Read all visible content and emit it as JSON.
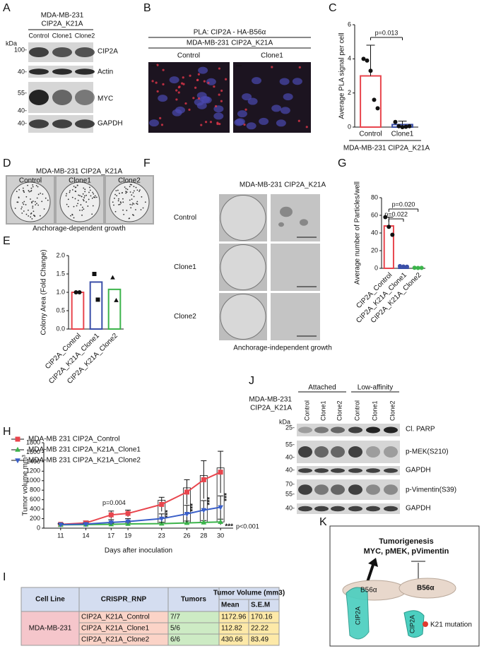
{
  "panel_labels": [
    "A",
    "B",
    "C",
    "D",
    "E",
    "F",
    "G",
    "H",
    "I",
    "J",
    "K"
  ],
  "panel_a": {
    "cell_line": "MDA-MB-231",
    "construct": "CIP2A_K21A",
    "lanes": [
      "Control",
      "Clone1",
      "Clone2"
    ],
    "kda": "kDa",
    "markers": [
      "100-",
      "40-",
      "55-",
      "40-",
      "40-"
    ],
    "proteins": [
      "CIP2A",
      "Actin",
      "MYC",
      "GAPDH"
    ]
  },
  "panel_b": {
    "title": "PLA: CIP2A - HA-B56α",
    "subtitle": "MDA-MB-231 CIP2A_K21A",
    "columns": [
      "Control",
      "Clone1"
    ]
  },
  "panel_d": {
    "title": "MDA-MB-231 CIP2A_K21A",
    "columns": [
      "Control",
      "Clone1",
      "Clone2"
    ],
    "caption": "Anchorage-dependent growth"
  },
  "panel_f": {
    "title": "MDA-MB-231 CIP2A_K21A",
    "rows": [
      "Control",
      "Clone1",
      "Clone2"
    ],
    "caption": "Anchorage-independent growth"
  },
  "panel_j": {
    "groups": [
      "Attached",
      "Low-affinity"
    ],
    "lanes": [
      "Control",
      "Clone1",
      "Clone2",
      "Control",
      "Clone1",
      "Clone2"
    ],
    "cell_line": "MDA-MB-231",
    "construct": "CIP2A_K21A",
    "kda": "kDa",
    "markers": [
      "25-",
      "55-",
      "40-",
      "40-",
      "70-",
      "55-",
      "40-"
    ],
    "proteins": [
      "Cl. PARP",
      "p-MEK(S210)",
      "GAPDH",
      "p-Vimentin(S39)",
      "GAPDH"
    ]
  },
  "panel_k": {
    "title": "Tumorigenesis",
    "subtitle": "MYC, pMEK, pVimentin",
    "b56": "B56α",
    "cip2a": "CIP2A",
    "mutation": "K21 mutation"
  },
  "table": {
    "header": [
      "Cell Line",
      "CRISPR_RNP",
      "Tumors",
      "Tumor Volume (mm3)"
    ],
    "subheader": [
      "Mean",
      "S.E.M"
    ],
    "cell_line": "MDA-MB-231",
    "rows": [
      [
        "CIP2A_K21A_Control",
        "7/7",
        1172.96,
        170.16
      ],
      [
        "CIP2A_K21A_Clone1",
        "5/6",
        112.82,
        22.22
      ],
      [
        "CIP2A_K21A_Clone2",
        "6/6",
        430.66,
        83.49
      ]
    ]
  },
  "chart_data": [
    {
      "type": "bar",
      "ylabel": "Average PLA signal per cell",
      "xlabel": "MDA-MB-231 CIP2A_K21A",
      "categories": [
        "Control",
        "Clone1"
      ],
      "values": [
        3.0,
        0.15
      ],
      "errors": [
        1.8,
        0.2
      ],
      "points": [
        [
          4.0,
          3.9,
          3.3,
          1.6,
          1.1
        ],
        [
          0.3,
          0.05,
          0.0,
          0.02,
          0.05
        ]
      ],
      "colors": [
        "#e8454d",
        "#3a4fa8"
      ],
      "ylim": [
        0,
        6
      ],
      "yticks": [
        0,
        2,
        4,
        6
      ],
      "annotations": [
        "p=0.013"
      ]
    },
    {
      "type": "bar",
      "ylabel": "Colony Area (Fold Change)",
      "categories": [
        "CIP2A_Control",
        "CIP2A_K21A_Clone1",
        "CIP2A_K21A_Clone2"
      ],
      "values": [
        1.0,
        1.28,
        1.08
      ],
      "points": [
        [
          1.0,
          1.0
        ],
        [
          1.5,
          0.8
        ],
        [
          1.4,
          0.78
        ]
      ],
      "colors": [
        "#e8454d",
        "#3a4fa8",
        "#3cb44b"
      ],
      "ylim": [
        0,
        2
      ],
      "yticks": [
        {
          "value": 0,
          "label": "0.0"
        },
        0.5,
        {
          "value": 1,
          "label": "1.0"
        },
        1.5,
        {
          "value": 2,
          "label": "2.0"
        }
      ]
    },
    {
      "type": "bar",
      "ylabel": "Average number of Particles/well",
      "categories": [
        "CIP2A_Control",
        "CIP2A_K21A_Clone1",
        "CIP2A_K21A_Clone2"
      ],
      "values": [
        48,
        2,
        0.5
      ],
      "errors": [
        10,
        0.5,
        0.3
      ],
      "points": [
        [
          58,
          47,
          38
        ],
        [
          2.5,
          2,
          1.8
        ],
        [
          0.6,
          0.4,
          0.5
        ]
      ],
      "colors": [
        "#e8454d",
        "#3a4fa8",
        "#3cb44b"
      ],
      "ylim": [
        0,
        80
      ],
      "yticks": [
        0,
        20,
        40,
        60,
        80
      ],
      "annotations": [
        "p=0.022",
        "p=0.020"
      ]
    },
    {
      "type": "line",
      "ylabel": "Tumor volume mm³",
      "xlabel": "Days after inoculation",
      "x": [
        11,
        14,
        17,
        19,
        23,
        26,
        28,
        30
      ],
      "xlim": [
        9,
        31.5
      ],
      "xticks": [
        11,
        14,
        17,
        19,
        23,
        26,
        28,
        30
      ],
      "ylim": [
        0,
        1800
      ],
      "yticks": [
        0,
        200,
        400,
        600,
        800,
        1000,
        1200,
        1400,
        1600,
        1800
      ],
      "series": [
        {
          "name": "MDA-MB 231 CIP2A_Control",
          "color": "#e8454d",
          "marker": "square",
          "values": [
            80,
            110,
            280,
            310,
            500,
            760,
            1020,
            1180
          ],
          "errors": [
            20,
            40,
            80,
            70,
            150,
            260,
            400,
            440
          ]
        },
        {
          "name": "MDA-MB 231 CIP2A_K21A_Clone1",
          "color": "#3cb44b",
          "marker": "triangle",
          "values": [
            70,
            75,
            80,
            90,
            95,
            110,
            120,
            130
          ],
          "errors": [
            15,
            20,
            25,
            30,
            30,
            40,
            40,
            60
          ]
        },
        {
          "name": "MDA-MB 231 CIP2A_K21A_Clone2",
          "color": "#3a5fc8",
          "marker": "triangle-down",
          "values": [
            75,
            85,
            120,
            140,
            200,
            300,
            380,
            440
          ],
          "errors": [
            20,
            30,
            60,
            60,
            100,
            180,
            200,
            240
          ]
        }
      ],
      "annotations": [
        "p=0.004",
        "p<0.001"
      ],
      "significance": "***"
    }
  ]
}
